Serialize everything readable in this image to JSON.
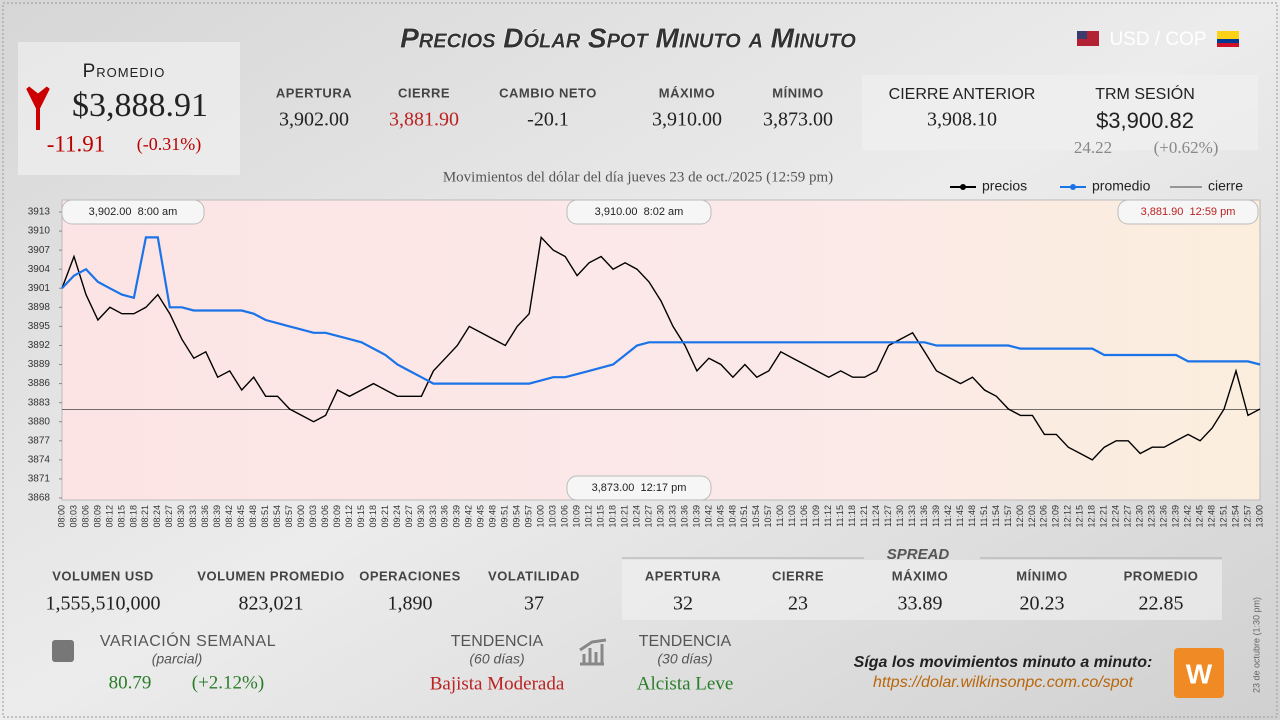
{
  "header": {
    "title": "Precios Dólar Spot Minuto a Minuto",
    "pair": "USD / COP"
  },
  "summary": {
    "label": "Promedio",
    "value": "$3,888.91",
    "change": "-11.91",
    "change_pct": "(-0.31%)"
  },
  "stats": [
    {
      "label": "Apertura",
      "value": "3,902.00"
    },
    {
      "label": "Cierre",
      "value": "3,881.90"
    },
    {
      "label": "Cambio neto",
      "value": "-20.1"
    },
    {
      "label": "Máximo",
      "value": "3,910.00"
    },
    {
      "label": "Mínimo",
      "value": "3,873.00"
    }
  ],
  "previous": {
    "label": "Cierre anterior",
    "value": "3,908.10"
  },
  "trm": {
    "label": "TRM sesión",
    "value": "$3,900.82",
    "change": "24.22",
    "change_pct": "(+0.62%)"
  },
  "chart_data": {
    "type": "line",
    "subtitle": "Movimientos del dólar del día jueves 23 de oct./2025 (12:59 pm)",
    "categories": [
      "08:00",
      "08:03",
      "08:06",
      "08:09",
      "08:12",
      "08:15",
      "08:18",
      "08:21",
      "08:24",
      "08:27",
      "08:30",
      "08:33",
      "08:36",
      "08:39",
      "08:42",
      "08:45",
      "08:48",
      "08:51",
      "08:54",
      "08:57",
      "09:00",
      "09:03",
      "09:06",
      "09:09",
      "09:12",
      "09:15",
      "09:18",
      "09:21",
      "09:24",
      "09:27",
      "09:30",
      "09:33",
      "09:36",
      "09:39",
      "09:42",
      "09:45",
      "09:48",
      "09:51",
      "09:54",
      "09:57",
      "10:00",
      "10:03",
      "10:06",
      "10:09",
      "10:12",
      "10:15",
      "10:18",
      "10:21",
      "10:24",
      "10:27",
      "10:30",
      "10:33",
      "10:36",
      "10:39",
      "10:42",
      "10:45",
      "10:48",
      "10:51",
      "10:54",
      "10:57",
      "11:00",
      "11:03",
      "11:06",
      "11:09",
      "11:12",
      "11:15",
      "11:18",
      "11:21",
      "11:24",
      "11:27",
      "11:30",
      "11:33",
      "11:36",
      "11:39",
      "11:42",
      "11:45",
      "11:48",
      "11:51",
      "11:54",
      "11:57",
      "12:00",
      "12:03",
      "12:06",
      "12:09",
      "12:12",
      "12:15",
      "12:18",
      "12:21",
      "12:24",
      "12:27",
      "12:30",
      "12:33",
      "12:36",
      "12:39",
      "12:42",
      "12:45",
      "12:48",
      "12:51",
      "12:54",
      "12:57",
      "13:00"
    ],
    "series": [
      {
        "name": "precios",
        "color": "#000000",
        "values": [
          3901,
          3906,
          3900,
          3896,
          3898,
          3897,
          3897,
          3898,
          3900,
          3897,
          3893,
          3890,
          3891,
          3887,
          3888,
          3885,
          3887,
          3884,
          3884,
          3882,
          3881,
          3880,
          3881,
          3885,
          3884,
          3885,
          3886,
          3885,
          3884,
          3884,
          3884,
          3888,
          3890,
          3892,
          3895,
          3894,
          3893,
          3892,
          3895,
          3897,
          3909,
          3907,
          3906,
          3903,
          3905,
          3906,
          3904,
          3905,
          3904,
          3902,
          3899,
          3895,
          3892,
          3888,
          3890,
          3889,
          3887,
          3889,
          3887,
          3888,
          3891,
          3890,
          3889,
          3888,
          3887,
          3888,
          3887,
          3887,
          3888,
          3892,
          3893,
          3894,
          3891,
          3888,
          3887,
          3886,
          3887,
          3885,
          3884,
          3882,
          3881,
          3881,
          3878,
          3878,
          3876,
          3875,
          3874,
          3876,
          3877,
          3877,
          3875,
          3876,
          3876,
          3877,
          3878,
          3877,
          3879,
          3882,
          3888,
          3881,
          3882
        ]
      },
      {
        "name": "promedio",
        "color": "#1a73e8",
        "values": [
          3901,
          3903,
          3904,
          3902,
          3901,
          3900,
          3899.5,
          3909,
          3909,
          3898,
          3898,
          3897.5,
          3897.5,
          3897.5,
          3897.5,
          3897.5,
          3897,
          3896,
          3895.5,
          3895,
          3894.5,
          3894,
          3894,
          3893.5,
          3893,
          3892.5,
          3891.5,
          3890.5,
          3889,
          3888,
          3887,
          3886,
          3886,
          3886,
          3886,
          3886,
          3886,
          3886,
          3886,
          3886,
          3886.5,
          3887,
          3887,
          3887.5,
          3888,
          3888.5,
          3889,
          3890.5,
          3892,
          3892.5,
          3892.5,
          3892.5,
          3892.5,
          3892.5,
          3892.5,
          3892.5,
          3892.5,
          3892.5,
          3892.5,
          3892.5,
          3892.5,
          3892.5,
          3892.5,
          3892.5,
          3892.5,
          3892.5,
          3892.5,
          3892.5,
          3892.5,
          3892.5,
          3892.5,
          3892.5,
          3892.5,
          3892,
          3892,
          3892,
          3892,
          3892,
          3892,
          3892,
          3891.5,
          3891.5,
          3891.5,
          3891.5,
          3891.5,
          3891.5,
          3891.5,
          3890.5,
          3890.5,
          3890.5,
          3890.5,
          3890.5,
          3890.5,
          3890.5,
          3889.5,
          3889.5,
          3889.5,
          3889.5,
          3889.5,
          3889.5,
          3889
        ]
      }
    ],
    "reference_lines": [
      {
        "name": "cierre",
        "value": 3881.9,
        "color": "#444444"
      }
    ],
    "annotations": [
      "3,902.00  8:00 am",
      "3,910.00  8:02 am",
      "3,881.90  12:59 pm",
      "3,873.00  12:17 pm"
    ],
    "ylim": [
      3868,
      3913
    ],
    "yticks": [
      3868,
      3871,
      3874,
      3877,
      3880,
      3883,
      3886,
      3889,
      3892,
      3895,
      3898,
      3901,
      3904,
      3907,
      3910,
      3913
    ]
  },
  "volume": [
    {
      "label": "Volumen USD",
      "value": "1,555,510,000"
    },
    {
      "label": "Volumen promedio",
      "value": "823,021"
    },
    {
      "label": "Operaciones",
      "value": "1,890"
    },
    {
      "label": "Volatilidad",
      "value": "37"
    }
  ],
  "spread": {
    "title": "Spread",
    "items": [
      {
        "label": "Apertura",
        "value": "32"
      },
      {
        "label": "Cierre",
        "value": "23"
      },
      {
        "label": "Máximo",
        "value": "33.89"
      },
      {
        "label": "Mínimo",
        "value": "20.23"
      },
      {
        "label": "Promedio",
        "value": "22.85"
      }
    ]
  },
  "weekly": {
    "label": "Variación semanal",
    "note": "(parcial)",
    "value": "80.79",
    "pct": "(+2.12%)"
  },
  "trends": [
    {
      "label": "Tendencia",
      "period": "(60 días)",
      "value": "Bajista Moderada"
    },
    {
      "label": "Tendencia",
      "period": "(30 días)",
      "value": "Alcista Leve"
    }
  ],
  "footer": {
    "prompt": "Síga los movimientos minuto a minuto:",
    "url": "https://dolar.wilkinsonpc.com.co/spot",
    "side": "23 de octubre (1:30 pm)"
  }
}
